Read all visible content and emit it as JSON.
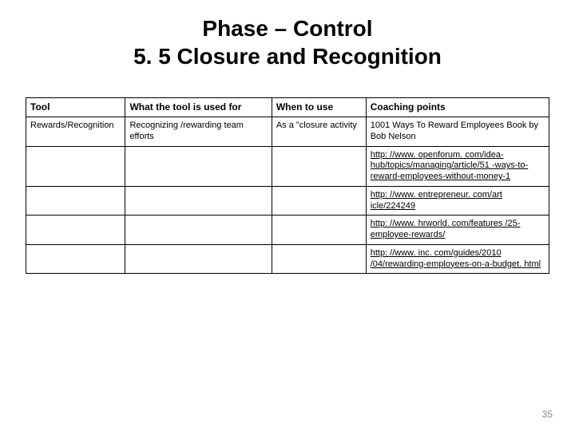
{
  "title_line1": "Phase – Control",
  "title_line2": "5. 5 Closure and Recognition",
  "table": {
    "headers": [
      "Tool",
      "What the tool is used for",
      "When to use",
      "Coaching points"
    ],
    "row1": {
      "tool": "Rewards/Recognition",
      "used_for": "Recognizing /rewarding team efforts",
      "when": "As a \"closure activity",
      "coaching": "1001 Ways To Reward Employees\nBook by Bob Nelson"
    },
    "links": [
      "http: //www. openforum. com/idea-hub/topics/managing/article/51 -ways-to-reward-employees-without-money-1",
      "http: //www. entrepreneur. com/art icle/224249",
      "http: //www. hrworld. com/features /25-employee-rewards/",
      "http: //www. inc. com/guides/2010 /04/rewarding-employees-on-a-budget. html"
    ]
  },
  "page_number": "35",
  "colors": {
    "background": "#ffffff",
    "text": "#000000",
    "border": "#000000",
    "page_num": "#8a8a8a"
  }
}
